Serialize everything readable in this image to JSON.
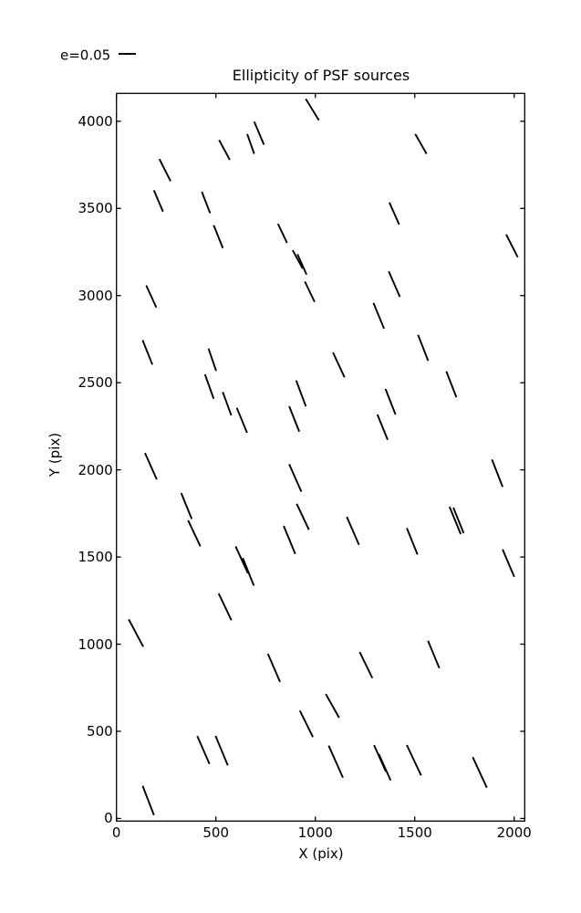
{
  "legend": {
    "label": "e=0.05"
  },
  "chart_data": {
    "type": "quiver",
    "title": "Ellipticity of PSF sources",
    "xlabel": "X (pix)",
    "ylabel": "Y (pix)",
    "xlim": [
      0,
      2053
    ],
    "ylim": [
      -15,
      4160
    ],
    "xticks": [
      0,
      500,
      1000,
      1500,
      2000
    ],
    "yticks": [
      0,
      500,
      1000,
      1500,
      2000,
      2500,
      3000,
      3500,
      4000
    ],
    "grid": false,
    "stick_color": "#000000",
    "frame_color": "#000000",
    "legend_scale_e": 0.05,
    "sticks": [
      {
        "x": 985,
        "y": 4067,
        "len": 139,
        "angle": -61.7
      },
      {
        "x": 717,
        "y": 3932,
        "len": 140,
        "angle": -69.6
      },
      {
        "x": 675,
        "y": 3870,
        "len": 119,
        "angle": -72.7
      },
      {
        "x": 543,
        "y": 3836,
        "len": 126,
        "angle": -64.7
      },
      {
        "x": 244,
        "y": 3720,
        "len": 139,
        "angle": -66.1
      },
      {
        "x": 211,
        "y": 3543,
        "len": 131,
        "angle": -69.5
      },
      {
        "x": 450,
        "y": 3534,
        "len": 129,
        "angle": -71.3
      },
      {
        "x": 512,
        "y": 3338,
        "len": 139,
        "angle": -70.7
      },
      {
        "x": 835,
        "y": 3357,
        "len": 119,
        "angle": -67.4
      },
      {
        "x": 911,
        "y": 3208,
        "len": 116,
        "angle": -64.3
      },
      {
        "x": 933,
        "y": 3179,
        "len": 126,
        "angle": -68.6
      },
      {
        "x": 1531,
        "y": 3870,
        "len": 127,
        "angle": -63.3
      },
      {
        "x": 1397,
        "y": 3471,
        "len": 135,
        "angle": -68.7
      },
      {
        "x": 1989,
        "y": 3285,
        "len": 143,
        "angle": -66.0
      },
      {
        "x": 1397,
        "y": 3066,
        "len": 157,
        "angle": -69.0
      },
      {
        "x": 972,
        "y": 3022,
        "len": 127,
        "angle": -67.3
      },
      {
        "x": 175,
        "y": 2995,
        "len": 136,
        "angle": -68.1
      },
      {
        "x": 156,
        "y": 2674,
        "len": 148,
        "angle": -70.6
      },
      {
        "x": 482,
        "y": 2632,
        "len": 133,
        "angle": -73.3
      },
      {
        "x": 467,
        "y": 2478,
        "len": 147,
        "angle": -72.5
      },
      {
        "x": 556,
        "y": 2379,
        "len": 141,
        "angle": -72.2
      },
      {
        "x": 631,
        "y": 2284,
        "len": 152,
        "angle": -70.1
      },
      {
        "x": 928,
        "y": 2439,
        "len": 156,
        "angle": -71.8
      },
      {
        "x": 894,
        "y": 2292,
        "len": 154,
        "angle": -70.8
      },
      {
        "x": 1319,
        "y": 2884,
        "len": 158,
        "angle": -70.1
      },
      {
        "x": 1542,
        "y": 2700,
        "len": 157,
        "angle": -71.2
      },
      {
        "x": 1118,
        "y": 2602,
        "len": 154,
        "angle": -67.8
      },
      {
        "x": 1684,
        "y": 2491,
        "len": 157,
        "angle": -71.2
      },
      {
        "x": 1378,
        "y": 2391,
        "len": 155,
        "angle": -71.0
      },
      {
        "x": 1338,
        "y": 2245,
        "len": 154,
        "angle": -70.4
      },
      {
        "x": 173,
        "y": 2021,
        "len": 163,
        "angle": -68.6
      },
      {
        "x": 352,
        "y": 1793,
        "len": 158,
        "angle": -70.3
      },
      {
        "x": 391,
        "y": 1636,
        "len": 161,
        "angle": -67.5
      },
      {
        "x": 630,
        "y": 1484,
        "len": 166,
        "angle": -68.2
      },
      {
        "x": 663,
        "y": 1415,
        "len": 167,
        "angle": -70.7
      },
      {
        "x": 546,
        "y": 1214,
        "len": 166,
        "angle": -67.3
      },
      {
        "x": 899,
        "y": 1954,
        "len": 169,
        "angle": -68.8
      },
      {
        "x": 937,
        "y": 1731,
        "len": 161,
        "angle": -67.5
      },
      {
        "x": 870,
        "y": 1598,
        "len": 171,
        "angle": -70.1
      },
      {
        "x": 1915,
        "y": 1981,
        "len": 166,
        "angle": -71.1
      },
      {
        "x": 1703,
        "y": 1710,
        "len": 167,
        "angle": -70.3
      },
      {
        "x": 1720,
        "y": 1710,
        "len": 156,
        "angle": -70.5
      },
      {
        "x": 1189,
        "y": 1650,
        "len": 172,
        "angle": -69.1
      },
      {
        "x": 1487,
        "y": 1590,
        "len": 161,
        "angle": -70.5
      },
      {
        "x": 1971,
        "y": 1465,
        "len": 168,
        "angle": -69.6
      },
      {
        "x": 98,
        "y": 1064,
        "len": 173,
        "angle": -65.0
      },
      {
        "x": 792,
        "y": 864,
        "len": 172,
        "angle": -69.2
      },
      {
        "x": 1595,
        "y": 941,
        "len": 167,
        "angle": -70.1
      },
      {
        "x": 1255,
        "y": 880,
        "len": 163,
        "angle": -66.9
      },
      {
        "x": 1086,
        "y": 646,
        "len": 152,
        "angle": -63.7
      },
      {
        "x": 955,
        "y": 543,
        "len": 166,
        "angle": -66.6
      },
      {
        "x": 437,
        "y": 393,
        "len": 172,
        "angle": -69.1
      },
      {
        "x": 529,
        "y": 389,
        "len": 180,
        "angle": -70.0
      },
      {
        "x": 1103,
        "y": 326,
        "len": 197,
        "angle": -68.6
      },
      {
        "x": 1325,
        "y": 345,
        "len": 163,
        "angle": -68.6
      },
      {
        "x": 1349,
        "y": 294,
        "len": 163,
        "angle": -68.6
      },
      {
        "x": 1496,
        "y": 334,
        "len": 189,
        "angle": -67.6
      },
      {
        "x": 1827,
        "y": 264,
        "len": 189,
        "angle": -68.0
      },
      {
        "x": 160,
        "y": 103,
        "len": 177,
        "angle": -71.3
      }
    ]
  }
}
